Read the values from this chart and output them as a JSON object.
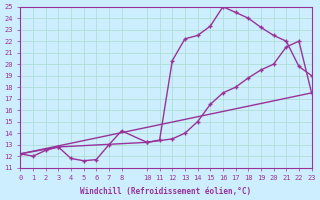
{
  "xlabel": "Windchill (Refroidissement éolien,°C)",
  "ylabel": "",
  "bg_color": "#cceeff",
  "grid_color": "#aaddcc",
  "line_color": "#993399",
  "xlim": [
    0,
    23
  ],
  "ylim": [
    11,
    25
  ],
  "xticks": [
    0,
    1,
    2,
    3,
    4,
    5,
    6,
    7,
    8,
    10,
    11,
    12,
    13,
    14,
    15,
    16,
    17,
    18,
    19,
    20,
    21,
    22,
    23
  ],
  "yticks": [
    11,
    12,
    13,
    14,
    15,
    16,
    17,
    18,
    19,
    20,
    21,
    22,
    23,
    24,
    25
  ],
  "line1_x": [
    0,
    1,
    2,
    3,
    4,
    5,
    6,
    7,
    8,
    10,
    11,
    12,
    13,
    14,
    15,
    16,
    17,
    18,
    19,
    20,
    21,
    22,
    23
  ],
  "line1_y": [
    12.2,
    12.0,
    12.5,
    12.8,
    11.8,
    11.6,
    11.7,
    13.0,
    14.2,
    13.2,
    13.4,
    20.3,
    22.2,
    22.5,
    23.3,
    25.0,
    24.5,
    24.0,
    23.2,
    22.5,
    22.0,
    19.8,
    19.0
  ],
  "line2_x": [
    0,
    3,
    10,
    12,
    13,
    14,
    15,
    16,
    17,
    18,
    19,
    20,
    21,
    22,
    23
  ],
  "line2_y": [
    12.2,
    12.8,
    13.2,
    13.5,
    14.0,
    15.0,
    16.5,
    17.5,
    18.0,
    18.8,
    19.5,
    20.0,
    21.5,
    22.0,
    17.5
  ],
  "line3_x": [
    0,
    23
  ],
  "line3_y": [
    12.2,
    17.5
  ]
}
